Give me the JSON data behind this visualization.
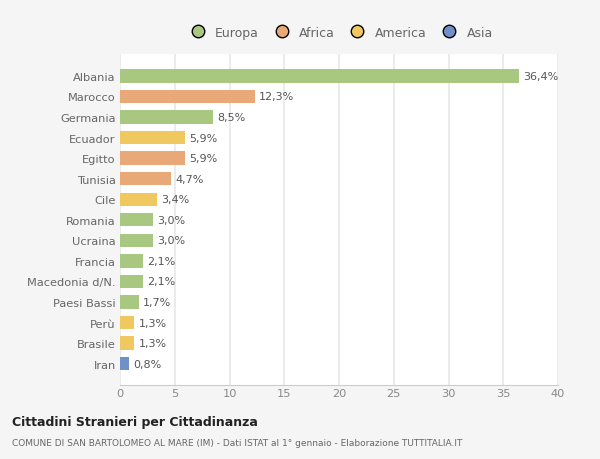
{
  "countries": [
    "Albania",
    "Marocco",
    "Germania",
    "Ecuador",
    "Egitto",
    "Tunisia",
    "Cile",
    "Romania",
    "Ucraina",
    "Francia",
    "Macedonia d/N.",
    "Paesi Bassi",
    "Perù",
    "Brasile",
    "Iran"
  ],
  "values": [
    36.4,
    12.3,
    8.5,
    5.9,
    5.9,
    4.7,
    3.4,
    3.0,
    3.0,
    2.1,
    2.1,
    1.7,
    1.3,
    1.3,
    0.8
  ],
  "labels": [
    "36,4%",
    "12,3%",
    "8,5%",
    "5,9%",
    "5,9%",
    "4,7%",
    "3,4%",
    "3,0%",
    "3,0%",
    "2,1%",
    "2,1%",
    "1,7%",
    "1,3%",
    "1,3%",
    "0,8%"
  ],
  "colors": [
    "#a8c882",
    "#e8a878",
    "#a8c882",
    "#f0c860",
    "#e8a878",
    "#e8a878",
    "#f0c860",
    "#a8c882",
    "#a8c882",
    "#a8c882",
    "#a8c882",
    "#a8c882",
    "#f0c860",
    "#f0c860",
    "#7090c8"
  ],
  "legend": {
    "Europa": "#a8c882",
    "Africa": "#e8a878",
    "America": "#f0c860",
    "Asia": "#7090c8"
  },
  "title1": "Cittadini Stranieri per Cittadinanza",
  "title2": "COMUNE DI SAN BARTOLOMEO AL MARE (IM) - Dati ISTAT al 1° gennaio - Elaborazione TUTTITALIA.IT",
  "xlim": [
    0,
    40
  ],
  "xticks": [
    0,
    5,
    10,
    15,
    20,
    25,
    30,
    35,
    40
  ],
  "background_color": "#f5f5f5",
  "plot_bg_color": "#ffffff",
  "grid_color": "#e8e8e8",
  "bar_height": 0.65,
  "label_fontsize": 8.0,
  "ytick_fontsize": 8.2,
  "xtick_fontsize": 8.2
}
